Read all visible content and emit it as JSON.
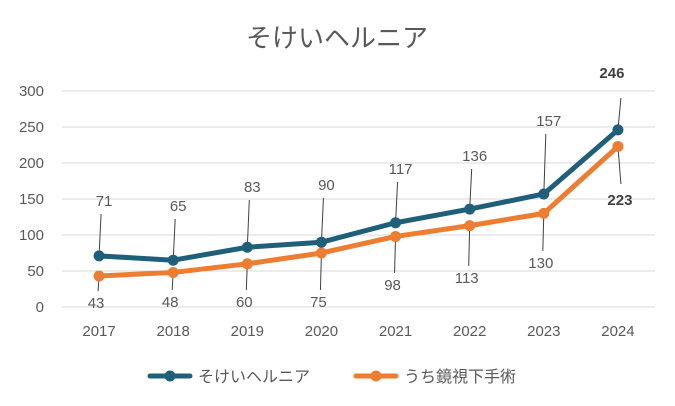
{
  "chart_data": {
    "type": "line",
    "title": "そけいヘルニア",
    "xlabel": "",
    "ylabel": "",
    "categories": [
      "2017",
      "2018",
      "2019",
      "2020",
      "2021",
      "2022",
      "2023",
      "2024"
    ],
    "ylim": [
      0,
      300
    ],
    "yticks": [
      0,
      50,
      100,
      150,
      200,
      250,
      300
    ],
    "grid": true,
    "legend_position": "bottom",
    "series": [
      {
        "name": "そけいヘルニア",
        "color": "#1F5F7A",
        "values": [
          71,
          65,
          83,
          90,
          117,
          136,
          157,
          246
        ],
        "label_position": "above"
      },
      {
        "name": "うち鏡視下手術",
        "color": "#ED7D31",
        "values": [
          43,
          48,
          60,
          75,
          98,
          113,
          130,
          223
        ],
        "label_position": "below"
      }
    ]
  }
}
